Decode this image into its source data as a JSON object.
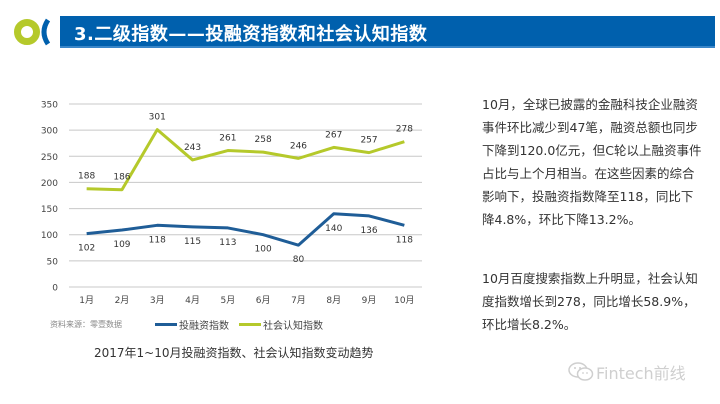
{
  "header": {
    "title": "3.二级指数——投融资指数和社会认知指数",
    "logo_icon": "brand-logo-icon",
    "bar_color": "#0060ad"
  },
  "chart_data": {
    "type": "line",
    "title": "2017年1~10月投融资指数、社会认知指数变动趋势",
    "xlabel": "",
    "ylabel": "",
    "categories": [
      "1月",
      "2月",
      "3月",
      "4月",
      "5月",
      "6月",
      "7月",
      "8月",
      "9月",
      "10月"
    ],
    "ylim": [
      0,
      350
    ],
    "yticks": [
      0,
      50,
      100,
      150,
      200,
      250,
      300,
      350
    ],
    "grid": true,
    "legend_position": "bottom",
    "series": [
      {
        "name": "投融资指数",
        "color": "#1f5d97",
        "values": [
          102,
          109,
          118,
          115,
          113,
          100,
          80,
          140,
          136,
          118
        ],
        "label_position": "below"
      },
      {
        "name": "社会认知指数",
        "color": "#b5c92b",
        "values": [
          188,
          186,
          301,
          243,
          261,
          258,
          246,
          267,
          257,
          278
        ],
        "label_position": "above"
      }
    ]
  },
  "source_note": "资料来源：零壹数据",
  "paragraphs": [
    "10月，全球已披露的金融科技企业融资事件环比减少到47笔，融资总额也同步下降到120.0亿元，但C轮以上融资事件占比与上个月相当。在这些因素的综合影响下，投融资指数降至118，同比下降4.8%，环比下降13.2%。",
    "10月百度搜索指数上升明显，社会认知度指数增长到278，同比增长58.9%，环比增长8.2%。"
  ],
  "watermark": {
    "icon": "wechat-icon",
    "text": "Fintech前线"
  }
}
